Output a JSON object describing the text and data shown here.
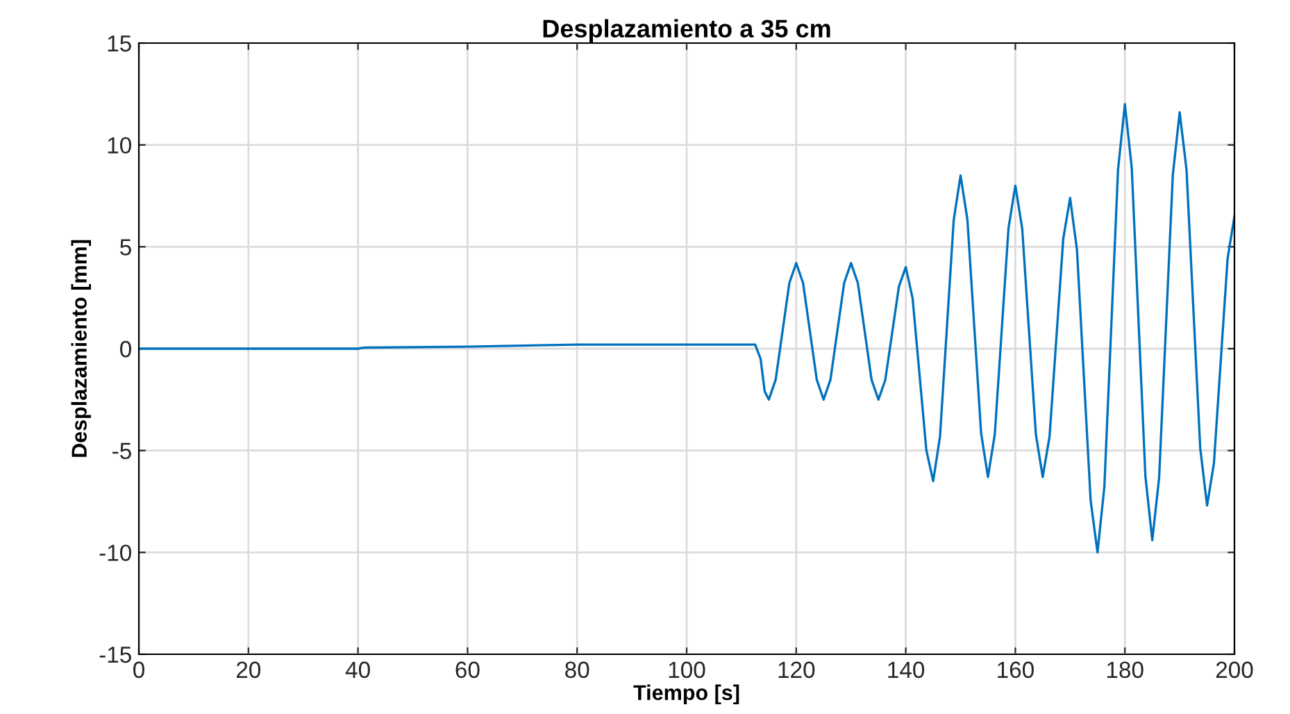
{
  "chart_data": {
    "type": "line",
    "title": "Desplazamiento a 35 cm",
    "xlabel": "Tiempo [s]",
    "ylabel": "Desplazamiento [mm]",
    "series": [
      {
        "color": "#0072bd",
        "x": [
          0,
          40,
          41,
          60,
          80,
          112.5,
          113.5,
          114.25,
          115,
          116.25,
          117.5,
          118.75,
          120,
          121.25,
          122.5,
          123.75,
          125,
          126.25,
          127.5,
          128.75,
          130,
          131.25,
          132.5,
          133.75,
          135,
          136.25,
          137.5,
          138.75,
          140,
          141.25,
          142.5,
          143.75,
          145,
          146.25,
          147.5,
          148.75,
          150,
          151.25,
          152.5,
          153.75,
          155,
          156.25,
          157.5,
          158.75,
          160,
          161.25,
          162.5,
          163.75,
          165,
          166.25,
          167.5,
          168.75,
          170,
          171.25,
          172.5,
          173.75,
          175,
          176.25,
          177.5,
          178.75,
          180,
          181.25,
          182.5,
          183.75,
          185,
          186.25,
          187.5,
          188.75,
          190,
          191.25,
          192.5,
          193.75,
          195,
          196.25,
          197.5,
          198.75,
          200
        ],
        "values": [
          0,
          0,
          0.05,
          0.1,
          0.2,
          0.2,
          -0.5,
          -2.1,
          -2.5,
          -1.52,
          0.85,
          3.22,
          4.2,
          3.22,
          0.85,
          -1.52,
          -2.5,
          -1.52,
          0.85,
          3.22,
          4.2,
          3.22,
          0.85,
          -1.52,
          -2.5,
          -1.55,
          0.75,
          3.05,
          4.0,
          2.47,
          -1.25,
          -4.97,
          -6.5,
          -4.31,
          1.0,
          6.31,
          8.5,
          6.34,
          1.1,
          -4.14,
          -6.3,
          -4.21,
          0.85,
          5.91,
          8.0,
          5.91,
          0.85,
          -4.21,
          -6.3,
          -4.3,
          0.55,
          5.4,
          7.4,
          4.86,
          -1.3,
          -7.46,
          -10.0,
          -6.79,
          1.0,
          8.79,
          12.0,
          8.88,
          1.3,
          -6.28,
          -9.4,
          -6.33,
          1.1,
          8.53,
          11.6,
          8.78,
          1.95,
          -4.88,
          -7.7,
          -5.63,
          -0.6,
          4.43,
          6.5
        ]
      }
    ],
    "xlim": [
      0,
      200
    ],
    "ylim": [
      -15,
      15
    ],
    "xticks": [
      0,
      20,
      40,
      60,
      80,
      100,
      120,
      140,
      160,
      180,
      200
    ],
    "yticks": [
      -15,
      -10,
      -5,
      0,
      5,
      10,
      15
    ],
    "grid": true,
    "line_style": "solid",
    "marker": "none"
  }
}
